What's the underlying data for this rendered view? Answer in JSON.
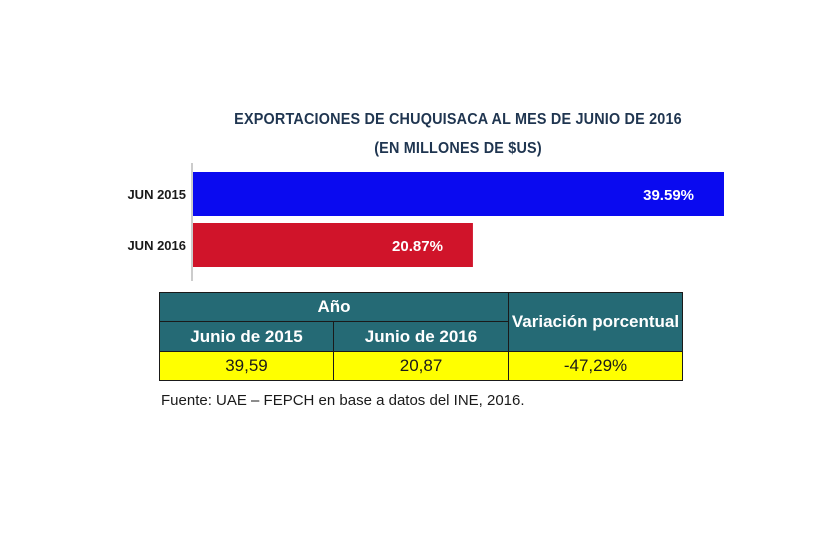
{
  "chart_data": {
    "type": "bar",
    "orientation": "horizontal",
    "title": "EXPORTACIONES DE CHUQUISACA AL MES DE JUNIO DE 2016",
    "subtitle": "(EN MILLONES DE $US)",
    "categories": [
      "JUN 2015",
      "JUN 2016"
    ],
    "values": [
      39.59,
      20.87
    ],
    "data_labels": [
      "39.59%",
      "20.87%"
    ],
    "colors": [
      "#0a0af0",
      "#d0142a"
    ],
    "xlim": [
      0,
      39.59
    ],
    "grid": false,
    "legend": "none"
  },
  "table": {
    "header_group": "Año",
    "header_variation": "Variación porcentual",
    "columns": [
      "Junio de 2015",
      "Junio de 2016"
    ],
    "row": [
      "39,59",
      "20,87",
      "-47,29%"
    ],
    "header_color": "#256a75",
    "cell_color": "#ffff00"
  },
  "source": "Fuente: UAE – FEPCH en base a datos del INE, 2016."
}
